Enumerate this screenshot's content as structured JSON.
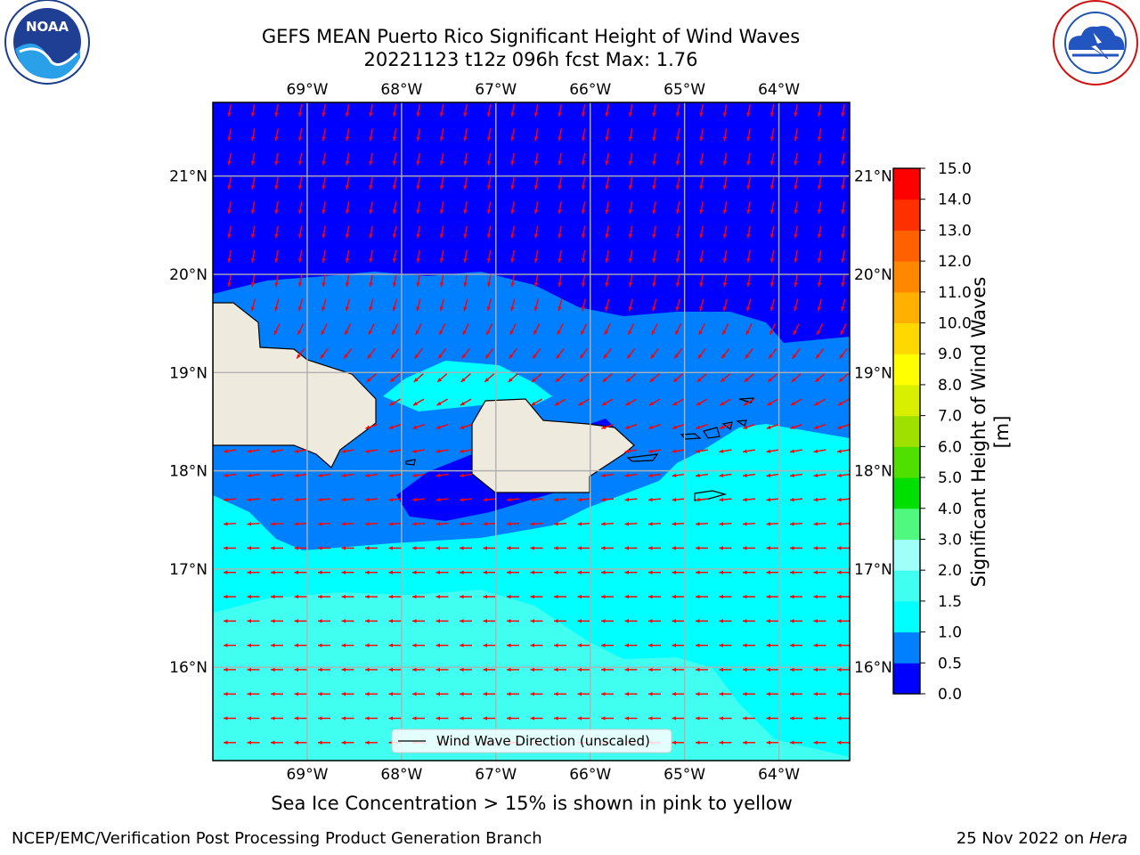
{
  "header": {
    "title_line1": "GEFS MEAN Puerto Rico Significant Height of Wind Waves",
    "title_line2": "20221123 t12z 096h fcst   Max: 1.76"
  },
  "logos": {
    "left": {
      "name": "noaa-logo",
      "text": "NOAA",
      "ring_text": "NATIONAL OCEANIC AND ATMOSPHERIC ADMINISTRATION · U.S. DEPARTMENT OF COMMERCE"
    },
    "right": {
      "name": "nws-logo",
      "ring_text": "NATIONAL WEATHER SERVICE"
    }
  },
  "map": {
    "lon_labels": [
      "69°W",
      "68°W",
      "67°W",
      "66°W",
      "65°W",
      "64°W"
    ],
    "lon_values": [
      -69,
      -68,
      -67,
      -66,
      -65,
      -64
    ],
    "lat_labels": [
      "21°N",
      "20°N",
      "19°N",
      "18°N",
      "17°N",
      "16°N"
    ],
    "lat_values": [
      21,
      20,
      19,
      18,
      17,
      16
    ],
    "lon_range": [
      -70,
      -63.25
    ],
    "lat_range": [
      15.05,
      21.75
    ],
    "field": "significant height of wind waves",
    "arrow_color": "#ff0000",
    "land_color": "#eeeade",
    "coast_color": "#000000",
    "grid_color": "#b0b0b0",
    "legend_label": "Wind Wave Direction (unscaled)"
  },
  "colorbar": {
    "title": "Significant Height of Wind Waves [m]",
    "ticks": [
      "0.0",
      "0.5",
      "1.0",
      "1.5",
      "2.0",
      "3.0",
      "4.0",
      "5.0",
      "6.0",
      "7.0",
      "8.0",
      "9.0",
      "10.0",
      "11.0",
      "12.0",
      "13.0",
      "14.0",
      "15.0"
    ],
    "colors": [
      "#0000ff",
      "#0080ff",
      "#00ffff",
      "#40fff0",
      "#a0fff8",
      "#50f880",
      "#00e000",
      "#50e000",
      "#a0e000",
      "#d8f000",
      "#ffff00",
      "#ffd800",
      "#ffb000",
      "#ff8800",
      "#ff6000",
      "#ff3000",
      "#ff0000"
    ]
  },
  "caption": "Sea Ice Concentration > 15% is shown in pink to yellow",
  "footer": {
    "left": "NCEP/EMC/Verification Post Processing Product Generation Branch",
    "right_prefix": "25 Nov 2022 on ",
    "right_host": "Hera"
  }
}
